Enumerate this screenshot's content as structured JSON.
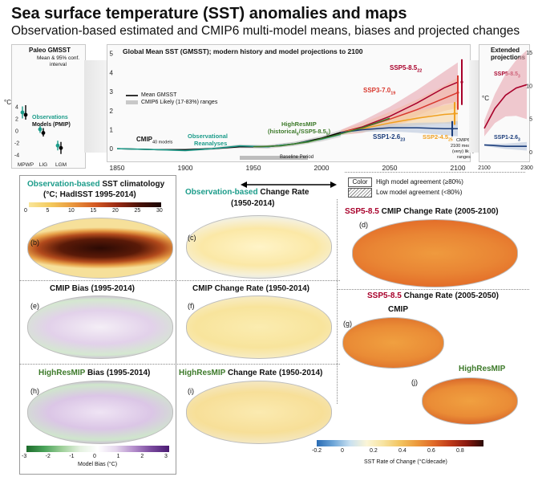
{
  "figure": {
    "title": "Sea surface temperature (SST) anomalies and maps",
    "subtitle": "Observation-based estimated and CMIP6 multi-model means, biases and projected changes"
  },
  "paleo": {
    "title": "Paleo GMSST",
    "note1": "Mean & 95% conf.",
    "note2": "interval",
    "ylabel": "°C",
    "yticks": [
      "4",
      "2",
      "0",
      "-2",
      "-4"
    ],
    "legend_obs": "Observations",
    "legend_models": "Models (PMIP)",
    "periods": [
      "MPWP",
      "LIG",
      "LGM"
    ]
  },
  "gmsst": {
    "title": "Global Mean SST (GMSST); modern history and model projections to 2100",
    "ylabel": "°C",
    "yticks": [
      "5",
      "4",
      "3",
      "2",
      "1",
      "0"
    ],
    "xticks": [
      "1850",
      "1900",
      "1950",
      "2000",
      "2050",
      "2100"
    ],
    "legend_mean": "Mean GMSST",
    "legend_range": "CMIP6 Likely (17-83%) ranges",
    "lbl_cmip": "CMIP",
    "lbl_cmip_n": "40 models",
    "lbl_obs1": "Observational",
    "lbl_obs2": "Reanalyses",
    "lbl_hr1": "HighResMIP",
    "lbl_hr2": "(historical",
    "lbl_hr3": "/SSP5-8.5",
    "lbl_hr_sub1": "6",
    "lbl_hr_sub2": "5",
    "lbl_hr_close": ")",
    "baseline": "Baseline Period",
    "ssp585": "SSP5-8.5",
    "ssp585_n": "22",
    "ssp370": "SSP3-7.0",
    "ssp370_n": "19",
    "ssp126": "SSP1-2.6",
    "ssp126_n": "23",
    "ssp245": "SSP2-4.5",
    "ssp245_n": "25",
    "cmip_ranges1": "CMIP6",
    "cmip_ranges2": "2100 means &",
    "cmip_ranges3": "(very) likely",
    "cmip_ranges4": "ranges"
  },
  "extended": {
    "title1": "Extended",
    "title2": "projections",
    "ylabel": "°C",
    "yticks": [
      "15",
      "10",
      "5",
      "0"
    ],
    "xticks": [
      "2100",
      "2300"
    ],
    "ssp585": "SSP5-8.5",
    "ssp585_n": "3",
    "ssp126": "SSP1-2.6",
    "ssp126_n": "3"
  },
  "agreement": {
    "color_box": "Color",
    "high": "High model agreement (≥80%)",
    "low": "Low model agreement (<80%)"
  },
  "maps": {
    "b_title_a": "Observation-based",
    "b_title_b": " SST climatology",
    "b_title2": "(°C; HadISST  1995-2014)",
    "b_scale": [
      "0",
      "5",
      "10",
      "15",
      "20",
      "25",
      "30"
    ],
    "b_letter": "(b)",
    "c_title_a": "Observation-based",
    "c_title_b": " Change Rate",
    "c_title2": "(1950-2014)",
    "c_letter": "(c)",
    "d_title_a": "SSP5-8.5",
    "d_title_b": " CMIP Change Rate (2005-2100)",
    "d_letter": "(d)",
    "e_title": "CMIP Bias (1995-2014)",
    "e_letter": "(e)",
    "f_title": "CMIP Change Rate (1950-2014)",
    "f_letter": "(f)",
    "g_title_a": "SSP5-8.5",
    "g_title_b": " Change Rate (2005-2050)",
    "g_sub": "CMIP",
    "g_letter": "(g)",
    "h_title_a": "HighResMIP",
    "h_title_b": " Bias (1995-2014)",
    "h_letter": "(h)",
    "i_title_a": "HighResMIP",
    "i_title_b": " Change Rate (1950-2014)",
    "i_letter": "(i)",
    "j_sub": "HighResMIP",
    "j_letter": "(j)",
    "bias_scale": [
      "-3",
      "-2",
      "-1",
      "0",
      "1",
      "2",
      "3"
    ],
    "bias_label": "Model Bias (°C)",
    "rate_scale": [
      "-0.2",
      "0",
      "0.2",
      "0.4",
      "0.6",
      "0.8"
    ],
    "rate_label": "SST Rate of Change (°C/decade)"
  },
  "chart_data": [
    {
      "type": "scatter",
      "title": "Paleo GMSST",
      "ylabel": "°C",
      "ylim": [
        -5,
        5
      ],
      "categories": [
        "MPWP",
        "LIG",
        "LGM"
      ],
      "series": [
        {
          "name": "Observations",
          "values": [
            3.0,
            0.2,
            -2.5
          ],
          "low": [
            2.0,
            -0.4,
            -3.3
          ],
          "high": [
            4.0,
            0.8,
            -1.7
          ],
          "color": "#1c9c8a"
        },
        {
          "name": "Models (PMIP)",
          "values": [
            2.6,
            -0.4,
            -2.9
          ],
          "low": [
            1.8,
            -1.0,
            -3.9
          ],
          "high": [
            4.2,
            0.4,
            -1.9
          ],
          "color": "#000000"
        }
      ]
    },
    {
      "type": "line",
      "title": "Global Mean SST (GMSST); modern history and model projections to 2100",
      "ylabel": "°C",
      "xlim": [
        1850,
        2100
      ],
      "ylim": [
        -0.5,
        5.2
      ],
      "grid": false,
      "legend": "top-left",
      "series": [
        {
          "name": "SSP5-8.5",
          "color": "#a8002a",
          "x": [
            2014,
            2030,
            2050,
            2070,
            2090,
            2100
          ],
          "values": [
            0.85,
            1.15,
            1.7,
            2.4,
            3.2,
            3.5
          ]
        },
        {
          "name": "SSP3-7.0",
          "color": "#d8382e",
          "x": [
            2014,
            2030,
            2050,
            2070,
            2090,
            2100
          ],
          "values": [
            0.85,
            1.1,
            1.55,
            2.05,
            2.65,
            2.95
          ]
        },
        {
          "name": "SSP2-4.5",
          "color": "#f0a020",
          "x": [
            2014,
            2030,
            2050,
            2070,
            2090,
            2100
          ],
          "values": [
            0.85,
            1.05,
            1.35,
            1.6,
            1.8,
            1.85
          ]
        },
        {
          "name": "SSP1-2.6",
          "color": "#1a3c7a",
          "x": [
            2014,
            2030,
            2050,
            2070,
            2090,
            2100
          ],
          "values": [
            0.85,
            1.0,
            1.1,
            1.1,
            1.05,
            1.05
          ]
        },
        {
          "name": "CMIP",
          "color": "#000000",
          "x": [
            1850,
            1880,
            1900,
            1920,
            1940,
            1960,
            1980,
            2000,
            2014
          ],
          "values": [
            0.0,
            -0.05,
            -0.05,
            0.0,
            0.1,
            0.1,
            0.25,
            0.55,
            0.85
          ]
        },
        {
          "name": "Observational Reanalyses",
          "color": "#1c9c8a",
          "x": [
            1850,
            1880,
            1900,
            1920,
            1940,
            1960,
            1980,
            2000,
            2014
          ],
          "values": [
            0.0,
            -0.05,
            -0.1,
            0.0,
            0.15,
            0.1,
            0.25,
            0.5,
            0.75
          ]
        },
        {
          "name": "HighResMIP (historical6/SSP5-8.55)",
          "color": "#3d7a2a",
          "x": [
            1950,
            1970,
            1990,
            2010,
            2030,
            2050
          ],
          "values": [
            0.1,
            0.15,
            0.35,
            0.7,
            1.1,
            1.6
          ]
        }
      ]
    },
    {
      "type": "line",
      "title": "Extended projections",
      "ylabel": "°C",
      "xlim": [
        2100,
        2300
      ],
      "ylim": [
        -1,
        15
      ],
      "series": [
        {
          "name": "SSP5-8.5",
          "color": "#a8002a",
          "x": [
            2100,
            2150,
            2200,
            2250,
            2300
          ],
          "values": [
            3.5,
            6.5,
            8.5,
            9.6,
            10.1
          ]
        },
        {
          "name": "SSP1-2.6",
          "color": "#1a3c7a",
          "x": [
            2100,
            2150,
            2200,
            2250,
            2300
          ],
          "values": [
            1.0,
            0.9,
            0.8,
            0.8,
            0.8
          ]
        }
      ]
    }
  ]
}
